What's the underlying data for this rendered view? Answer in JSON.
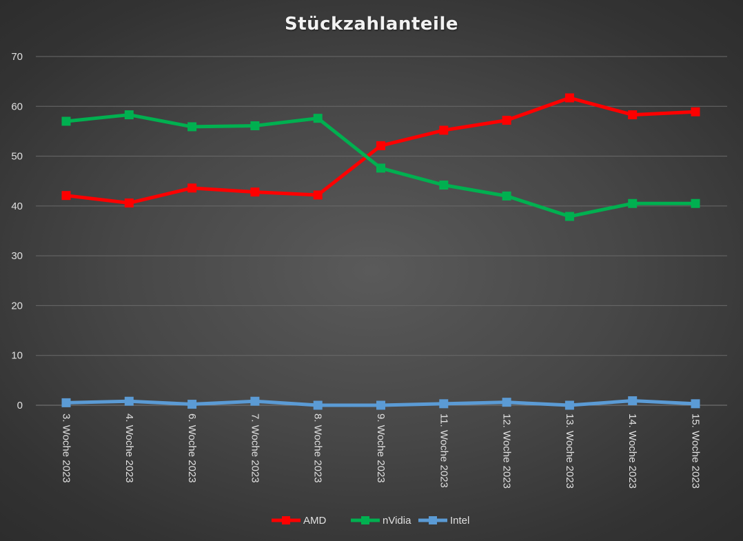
{
  "chart_data": {
    "type": "line",
    "title": "Stückzahlanteile",
    "categories": [
      "3. Woche 2023",
      "4. Woche 2023",
      "6. Woche 2023",
      "7. Woche 2023",
      "8. Woche 2023",
      "9. Woche 2023",
      "11. Woche 2023",
      "12. Woche 2023",
      "13. Woche 2023",
      "14. Woche 2023",
      "15. Woche 2023"
    ],
    "series": [
      {
        "name": "AMD",
        "color": "#ff0000",
        "values": [
          42.1,
          40.6,
          43.6,
          42.8,
          42.2,
          52.1,
          55.2,
          57.2,
          61.7,
          58.3,
          58.9
        ]
      },
      {
        "name": "nVidia",
        "color": "#00b050",
        "values": [
          57.0,
          58.3,
          55.9,
          56.1,
          57.6,
          47.6,
          44.2,
          42.0,
          37.9,
          40.5,
          40.5
        ]
      },
      {
        "name": "Intel",
        "color": "#5b9bd5",
        "values": [
          0.5,
          0.8,
          0.2,
          0.8,
          0.0,
          0.0,
          0.3,
          0.6,
          0.0,
          0.9,
          0.3
        ]
      }
    ],
    "xlabel": "",
    "ylabel": "",
    "ylim": [
      0,
      70
    ],
    "yticks": [
      0,
      10,
      20,
      30,
      40,
      50,
      60,
      70
    ],
    "grid": true,
    "legend": "bottom"
  }
}
